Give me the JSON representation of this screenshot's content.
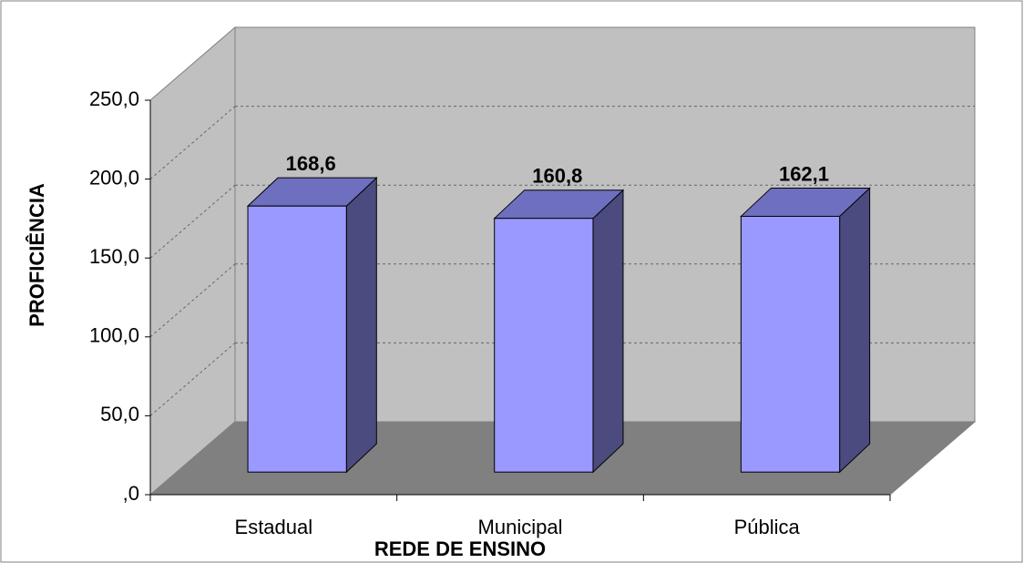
{
  "chart_data": {
    "type": "bar3d",
    "categories": [
      "Estadual",
      "Municipal",
      "Pública"
    ],
    "values": [
      168.6,
      160.8,
      162.1
    ],
    "value_labels": [
      "168,6",
      "160,8",
      "162,1"
    ],
    "color": "#9999ff",
    "x_label": "REDE DE ENSINO",
    "y_label": "PROFICIÊNCIA",
    "ylim": [
      0,
      250
    ],
    "yticks": [
      {
        "value": 0,
        "label": ",0"
      },
      {
        "value": 50,
        "label": "50,0"
      },
      {
        "value": 100,
        "label": "100,0"
      },
      {
        "value": 150,
        "label": "150,0"
      },
      {
        "value": 200,
        "label": "200,0"
      },
      {
        "value": 250,
        "label": "250,0"
      }
    ],
    "grid": true
  }
}
